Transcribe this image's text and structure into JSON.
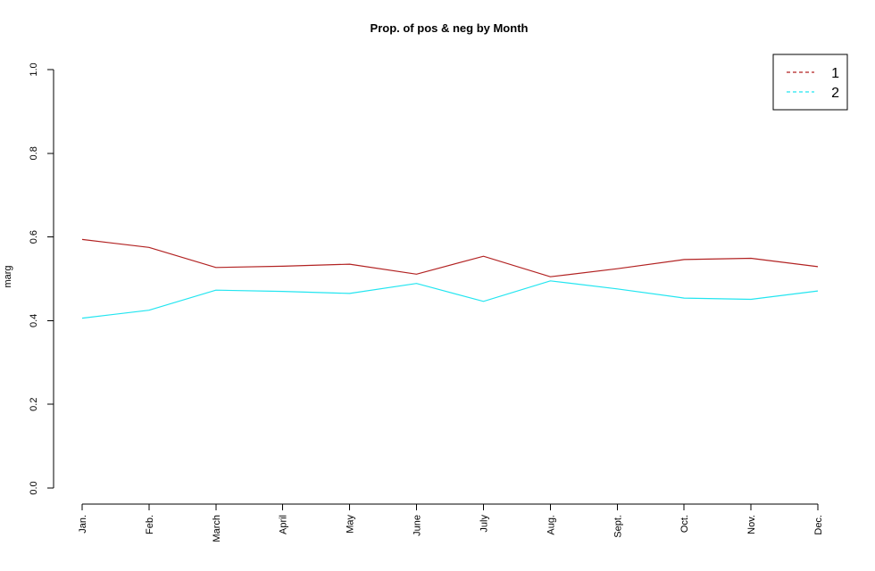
{
  "chart_data": {
    "type": "line",
    "title": "Prop. of pos & neg by Month",
    "xlabel": "",
    "ylabel": "marg",
    "categories": [
      "Jan.",
      "Feb.",
      "March",
      "April",
      "May",
      "June",
      "July",
      "Aug.",
      "Sept.",
      "Oct.",
      "Nov.",
      "Dec."
    ],
    "ylim": [
      0,
      1
    ],
    "yticks": [
      "0.0",
      "0.2",
      "0.4",
      "0.6",
      "0.8",
      "1.0"
    ],
    "grid": false,
    "legend_position": "top-right",
    "series": [
      {
        "name": "1",
        "color": "#b22222",
        "values": [
          0.594,
          0.575,
          0.527,
          0.53,
          0.535,
          0.511,
          0.554,
          0.505,
          0.524,
          0.546,
          0.549,
          0.529
        ]
      },
      {
        "name": "2",
        "color": "#22e5f0",
        "values": [
          0.406,
          0.425,
          0.473,
          0.47,
          0.465,
          0.489,
          0.446,
          0.495,
          0.476,
          0.454,
          0.451,
          0.471
        ]
      }
    ]
  }
}
